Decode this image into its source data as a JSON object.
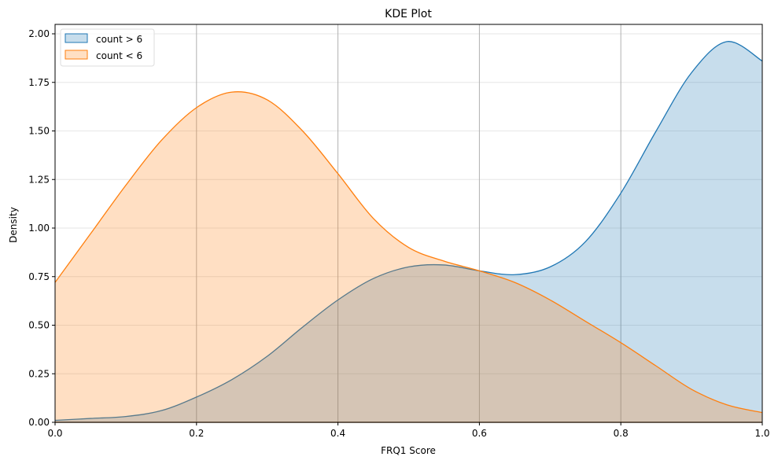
{
  "chart_data": {
    "type": "area",
    "title": "KDE Plot",
    "xlabel": "FRQ1 Score",
    "ylabel": "Density",
    "xlim": [
      0,
      1
    ],
    "ylim": [
      0,
      2.05
    ],
    "x_ticks": [
      "0.0",
      "0.2",
      "0.4",
      "0.6",
      "0.8",
      "1.0"
    ],
    "y_ticks": [
      "0.00",
      "0.25",
      "0.50",
      "0.75",
      "1.00",
      "1.25",
      "1.50",
      "1.75",
      "2.00"
    ],
    "grid": {
      "x": true,
      "y": true
    },
    "legend_position": "upper left",
    "x": [
      0,
      0.05,
      0.1,
      0.15,
      0.2,
      0.25,
      0.3,
      0.35,
      0.4,
      0.45,
      0.5,
      0.55,
      0.6,
      0.65,
      0.7,
      0.75,
      0.8,
      0.85,
      0.9,
      0.95,
      1.0
    ],
    "series": [
      {
        "name": "count > 6",
        "color": "#1f77b4",
        "fill": "#c6dbec",
        "values": [
          0.01,
          0.02,
          0.03,
          0.06,
          0.13,
          0.22,
          0.34,
          0.49,
          0.63,
          0.74,
          0.8,
          0.81,
          0.78,
          0.76,
          0.8,
          0.93,
          1.18,
          1.5,
          1.8,
          1.96,
          1.86
        ]
      },
      {
        "name": "count < 6",
        "color": "#ff7f0e",
        "fill": "#ffdec2",
        "values": [
          0.72,
          0.97,
          1.22,
          1.45,
          1.62,
          1.7,
          1.66,
          1.5,
          1.28,
          1.05,
          0.9,
          0.83,
          0.78,
          0.72,
          0.63,
          0.52,
          0.41,
          0.29,
          0.17,
          0.09,
          0.05
        ]
      }
    ]
  }
}
